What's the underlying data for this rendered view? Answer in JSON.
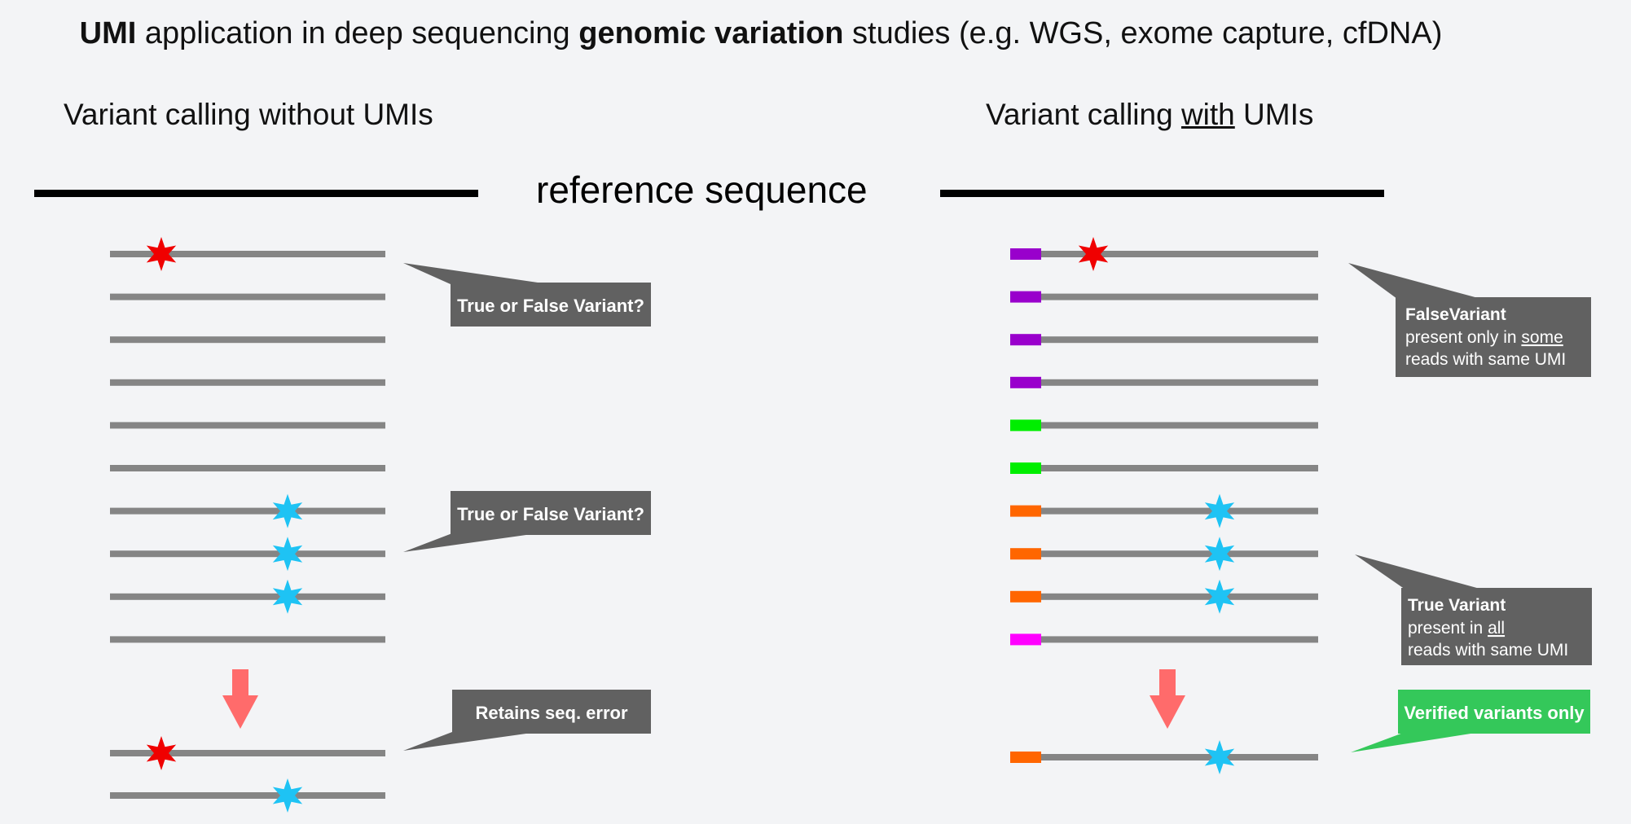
{
  "title": {
    "part1": "UMI",
    "part2": " application in deep sequencing ",
    "part3": "genomic variation",
    "part4": " studies (e.g. WGS, exome capture, cfDNA)"
  },
  "left": {
    "heading": "Variant calling without UMIs",
    "callouts": [
      "True or False Variant?",
      "True or False Variant?",
      "Retains seq. error"
    ]
  },
  "right": {
    "heading_pre": "Variant calling ",
    "heading_with": "with",
    "heading_post": " UMIs",
    "callout_false": {
      "title": "FalseVariant",
      "line1_pre": "present only in ",
      "line1_u": "some",
      "line2": "reads with same UMI"
    },
    "callout_true": {
      "title": "True Variant",
      "line1_pre": "present in ",
      "line1_u": "all",
      "line2": "reads with same UMI"
    },
    "callout_verified": "Verified variants only"
  },
  "reference_label": "reference sequence",
  "colors": {
    "read": "#858585",
    "error_star": "#f00000",
    "variant_star": "#1ec3f4",
    "callout": "#616161",
    "callout_verified": "#34c85a",
    "arrow": "#ff6b6b",
    "umi_purple": "#9900cc",
    "umi_green": "#00ee00",
    "umi_orange": "#ff6600",
    "umi_magenta": "#ff00ff"
  },
  "umi_groups": [
    "umi_purple",
    "umi_purple",
    "umi_purple",
    "umi_purple",
    "umi_green",
    "umi_green",
    "umi_orange",
    "umi_orange",
    "umi_orange",
    "umi_magenta"
  ],
  "marks": {
    "left_reads": [
      "error",
      "none",
      "none",
      "none",
      "none",
      "none",
      "variant",
      "variant",
      "variant",
      "none"
    ],
    "left_output": [
      "error",
      "variant"
    ],
    "right_reads": [
      "error",
      "none",
      "none",
      "none",
      "none",
      "none",
      "variant",
      "variant",
      "variant",
      "none"
    ],
    "right_output": [
      "variant"
    ],
    "right_output_umi": "umi_orange"
  }
}
